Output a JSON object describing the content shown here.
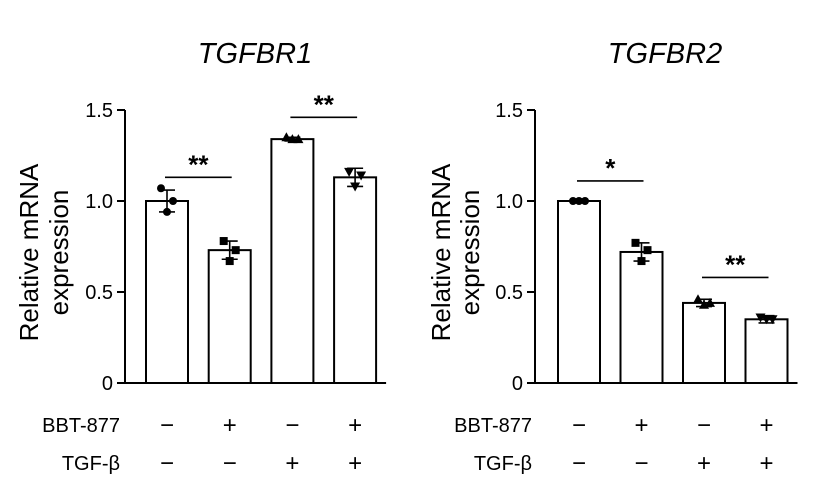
{
  "chart_data": [
    {
      "type": "bar",
      "title": "TGFBR1",
      "ylabel": "Relative mRNA expression",
      "ylabel_lines": [
        "Relative mRNA",
        "expression"
      ],
      "ylim": [
        0,
        1.5
      ],
      "yticks": [
        "0",
        "0.5",
        "1.0",
        "1.5"
      ],
      "ytick_values": [
        0,
        0.5,
        1.0,
        1.5
      ],
      "values": [
        1.0,
        0.73,
        1.34,
        1.13
      ],
      "errors": [
        0.06,
        0.05,
        0.01,
        0.05
      ],
      "points": [
        [
          1.07,
          1.0,
          0.94
        ],
        [
          0.78,
          0.73,
          0.67
        ],
        [
          1.35,
          1.34,
          1.34
        ],
        [
          1.16,
          1.14,
          1.08
        ]
      ],
      "significance": [
        {
          "pair": [
            0,
            1
          ],
          "y": 1.13,
          "label": "**"
        },
        {
          "pair": [
            2,
            3
          ],
          "y": 1.46,
          "label": "**"
        }
      ]
    },
    {
      "type": "bar",
      "title": "TGFBR2",
      "ylabel": "Relative mRNA expression",
      "ylabel_lines": [
        "Relative mRNA",
        "expression"
      ],
      "ylim": [
        0,
        1.5
      ],
      "yticks": [
        "0",
        "0.5",
        "1.0",
        "1.5"
      ],
      "ytick_values": [
        0,
        0.5,
        1.0,
        1.5
      ],
      "values": [
        1.0,
        0.72,
        0.44,
        0.35
      ],
      "errors": [
        0.01,
        0.05,
        0.02,
        0.02
      ],
      "points": [
        [
          1.0,
          1.0,
          1.0
        ],
        [
          0.77,
          0.73,
          0.67
        ],
        [
          0.46,
          0.44,
          0.43
        ],
        [
          0.36,
          0.35,
          0.35
        ]
      ],
      "significance": [
        {
          "pair": [
            0,
            1
          ],
          "y": 1.11,
          "label": "*"
        },
        {
          "pair": [
            2,
            3
          ],
          "y": 0.58,
          "label": "**"
        }
      ]
    }
  ],
  "conditions": [
    {
      "label": "BBT-877",
      "signs": [
        "−",
        "+",
        "−",
        "+"
      ]
    },
    {
      "label": "TGF-β",
      "signs": [
        "−",
        "−",
        "+",
        "+"
      ]
    }
  ]
}
